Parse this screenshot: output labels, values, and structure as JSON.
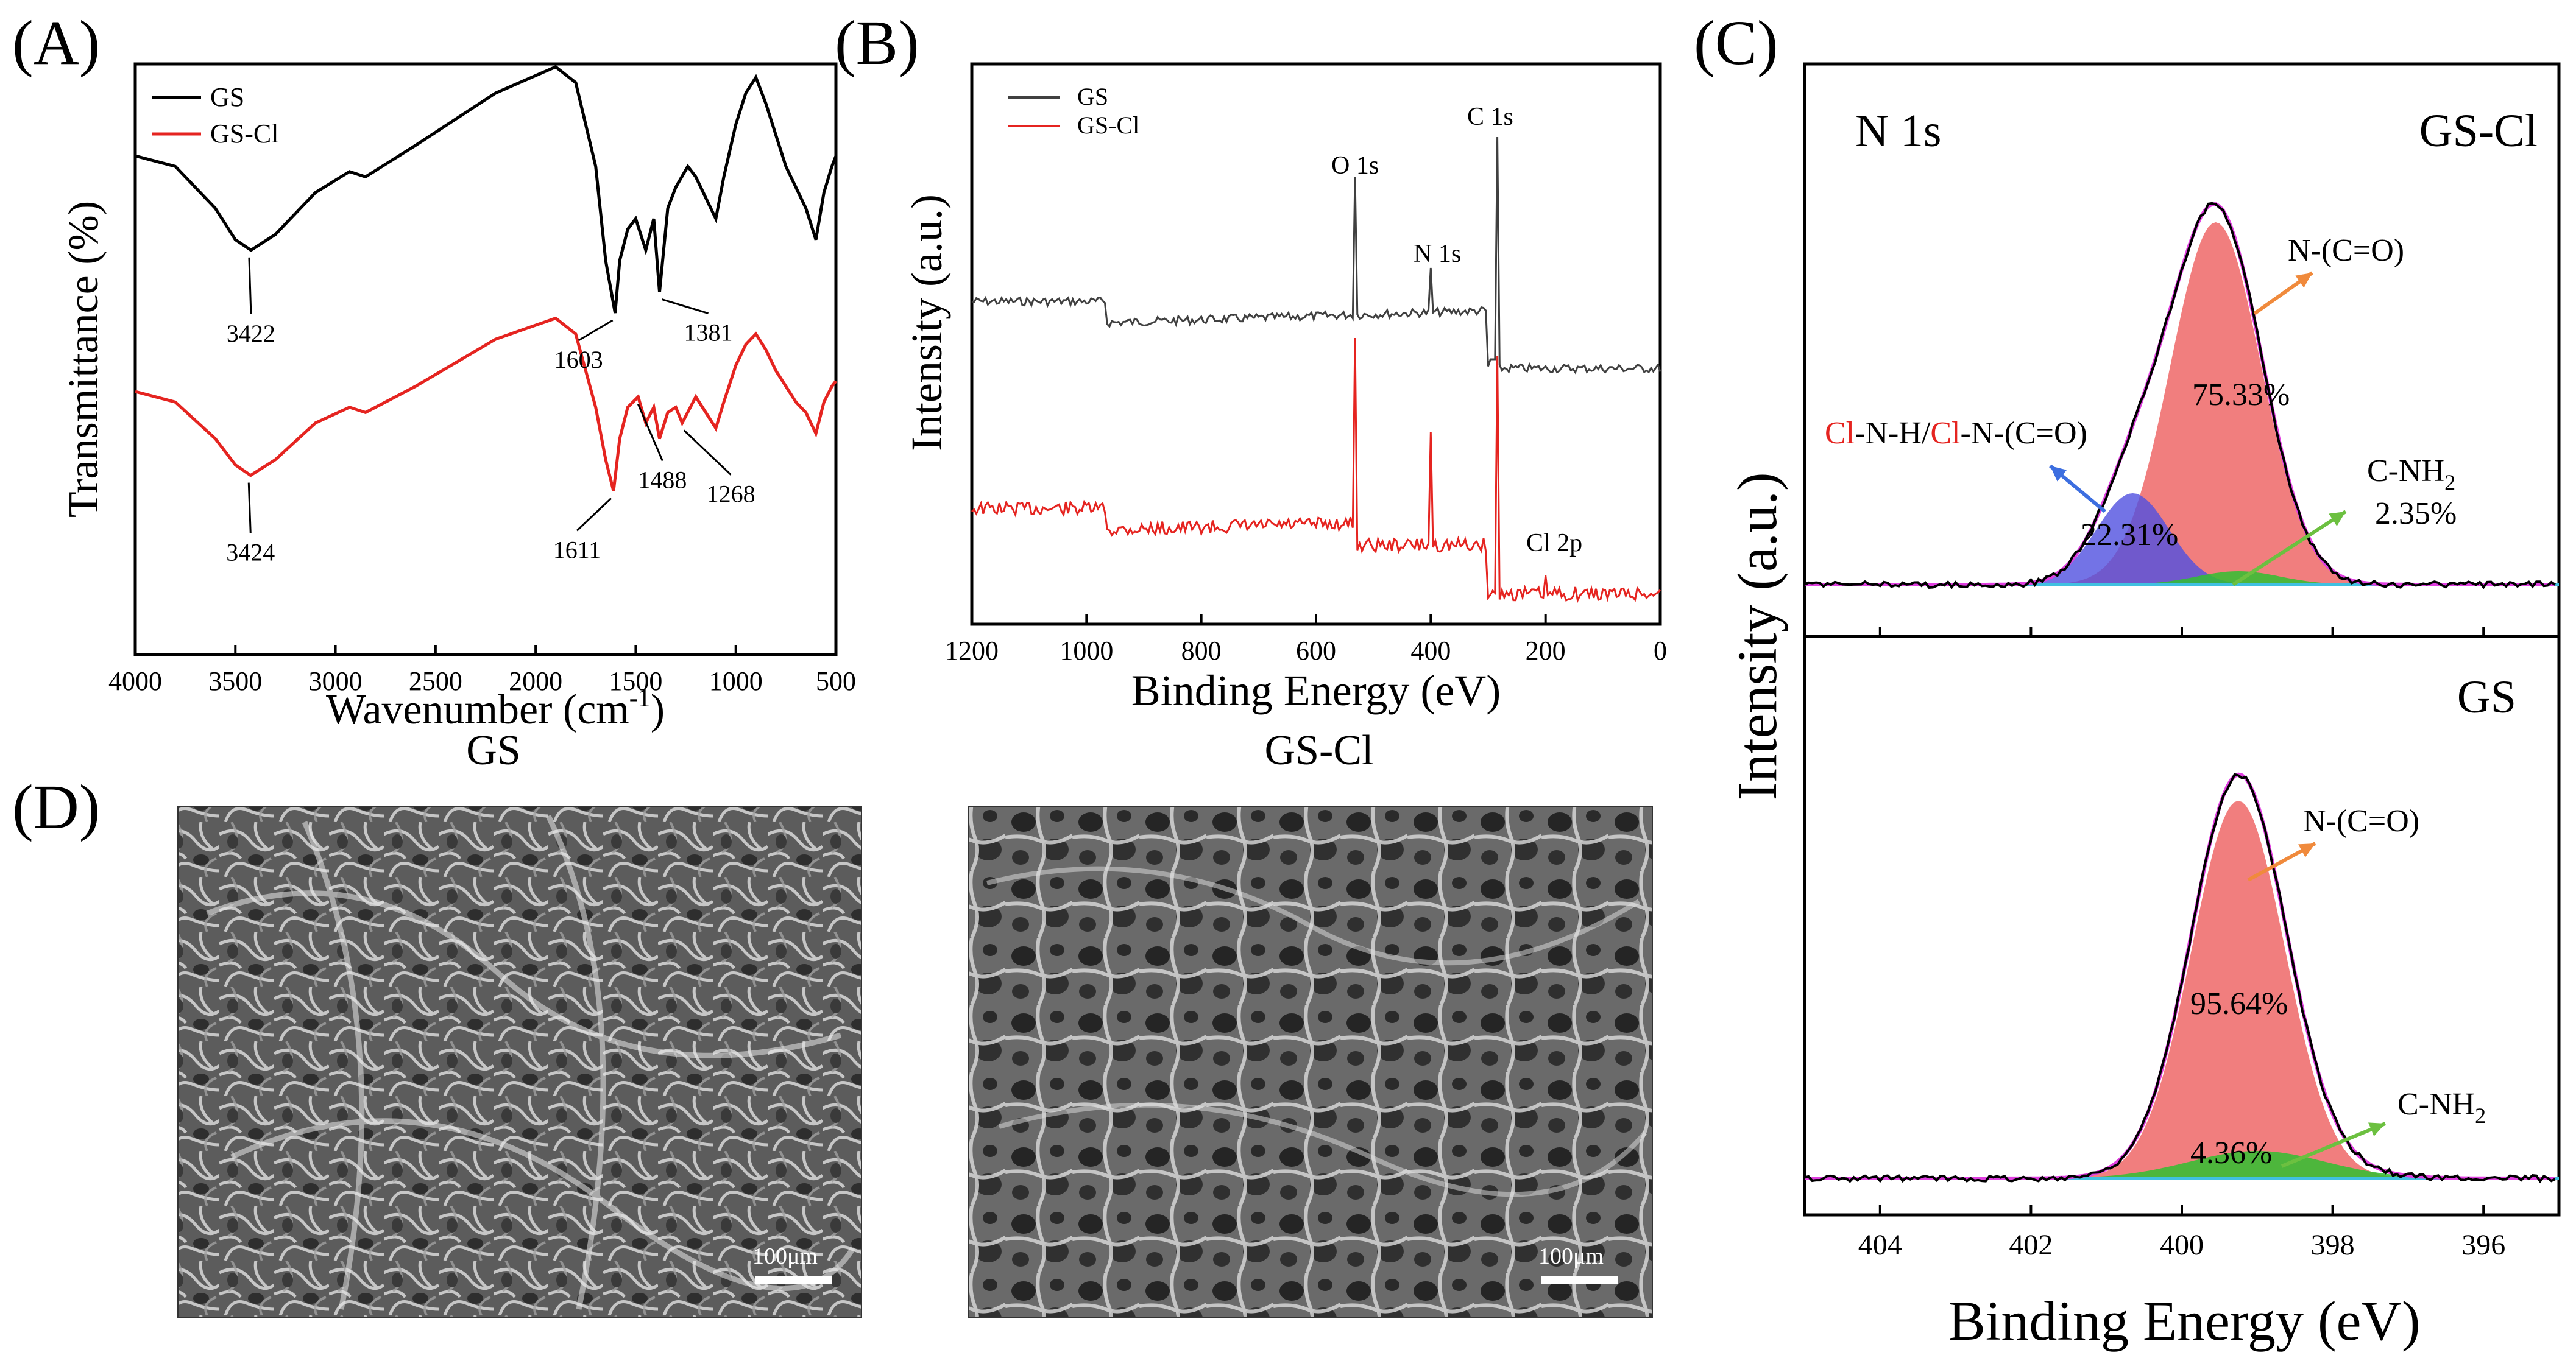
{
  "panels": {
    "A": {
      "label": "(A)"
    },
    "B": {
      "label": "(B)"
    },
    "C": {
      "label": "(C)"
    },
    "D": {
      "label": "(D)"
    }
  },
  "colors": {
    "gs": "#000000",
    "gscl": "#e52420",
    "main_fill": "#f07070",
    "cl_fill": "#5050e0",
    "nh2_fill": "#30c030",
    "envelope": "#e040e0",
    "baseline": "#40c0e0",
    "arrow_orange": "#f08a3c",
    "arrow_blue": "#3c6ee0",
    "arrow_green": "#6cc040",
    "cl_text": "#e52420"
  },
  "chart_data": [
    {
      "id": "A",
      "type": "line",
      "title": "",
      "xlabel_main": "Wavenumber (cm",
      "xlabel_sup": "-1",
      "xlabel_end": ")",
      "ylabel": "Transmittance (%)",
      "xlim": [
        4000,
        500
      ],
      "xticks": [
        "4000",
        "3500",
        "3000",
        "2500",
        "2000",
        "1500",
        "1000",
        "500"
      ],
      "legend": [
        "GS",
        "GS-Cl"
      ],
      "series": [
        {
          "name": "GS",
          "x": [
            4000,
            3800,
            3600,
            3500,
            3422,
            3300,
            3100,
            2930,
            2850,
            2600,
            2200,
            1900,
            1800,
            1700,
            1650,
            1603,
            1580,
            1540,
            1500,
            1450,
            1410,
            1381,
            1340,
            1300,
            1240,
            1200,
            1150,
            1100,
            1060,
            1000,
            950,
            900,
            850,
            800,
            750,
            700,
            650,
            600,
            560,
            520,
            500
          ],
          "y": [
            40,
            38,
            30,
            24,
            22,
            25,
            33,
            37,
            36,
            42,
            52,
            57,
            54,
            38,
            20,
            10,
            20,
            26,
            28,
            22,
            28,
            14,
            30,
            34,
            38,
            36,
            32,
            28,
            36,
            46,
            52,
            55,
            50,
            44,
            38,
            34,
            30,
            24,
            33,
            38,
            40
          ]
        },
        {
          "name": "GS-Cl",
          "x": [
            4000,
            3800,
            3600,
            3500,
            3424,
            3300,
            3100,
            2930,
            2850,
            2600,
            2200,
            1900,
            1800,
            1700,
            1650,
            1611,
            1580,
            1540,
            1488,
            1450,
            1410,
            1381,
            1340,
            1300,
            1268,
            1200,
            1150,
            1100,
            1060,
            1000,
            950,
            900,
            850,
            800,
            750,
            700,
            650,
            600,
            560,
            520,
            500
          ],
          "y": [
            -5,
            -7,
            -14,
            -19,
            -21,
            -18,
            -11,
            -8,
            -9,
            -4,
            5,
            9,
            6,
            -8,
            -18,
            -24,
            -14,
            -8,
            -6,
            -11,
            -8,
            -14,
            -9,
            -8,
            -11,
            -6,
            -9,
            -12,
            -7,
            0,
            4,
            6,
            3,
            -1,
            -4,
            -7,
            -9,
            -13,
            -7,
            -4,
            -3
          ]
        }
      ],
      "annotations": [
        {
          "text": "3422",
          "series": "GS",
          "x": 3422
        },
        {
          "text": "1603",
          "series": "GS",
          "x": 1603
        },
        {
          "text": "1381",
          "series": "GS",
          "x": 1381
        },
        {
          "text": "3424",
          "series": "GS-Cl",
          "x": 3424
        },
        {
          "text": "1611",
          "series": "GS-Cl",
          "x": 1611
        },
        {
          "text": "1488",
          "series": "GS-Cl",
          "x": 1488
        },
        {
          "text": "1268",
          "series": "GS-Cl",
          "x": 1268
        }
      ]
    },
    {
      "id": "B",
      "type": "line",
      "xlabel": "Binding Energy (eV)",
      "ylabel": "Intensity (a.u.)",
      "xlim": [
        1200,
        0
      ],
      "xticks": [
        "1200",
        "1000",
        "800",
        "600",
        "400",
        "200",
        "0"
      ],
      "legend": [
        "GS",
        "GS-Cl"
      ],
      "series": [
        {
          "name": "GS",
          "peaks": {
            "C 1s": 285,
            "O 1s": 532,
            "N 1s": 400
          }
        },
        {
          "name": "GS-Cl",
          "peaks": {
            "C 1s": 285,
            "O 1s": 532,
            "N 1s": 400,
            "Cl 2p": 200
          }
        }
      ],
      "peak_labels": [
        "O 1s",
        "N 1s",
        "C 1s",
        "Cl 2p"
      ]
    },
    {
      "id": "C",
      "type": "area",
      "xlabel": "Binding Energy (eV)",
      "ylabel": "Intensity (a.u.)",
      "xlim": [
        405,
        395
      ],
      "xticks": [
        "404",
        "402",
        "400",
        "398",
        "396"
      ],
      "title": "N 1s",
      "subpanels": [
        {
          "name": "GS-Cl",
          "components": [
            {
              "label": "N-(C=O)",
              "center": 399.5,
              "percent": "75.33%"
            },
            {
              "label_a": "Cl",
              "label_b": "-N-H/",
              "label_c": "Cl",
              "label_d": "-N-(C=O)",
              "center": 400.6,
              "percent": "22.31%"
            },
            {
              "label": "C-NH",
              "sub": "2",
              "center": 399.3,
              "percent": "2.35%"
            }
          ]
        },
        {
          "name": "GS",
          "components": [
            {
              "label": "N-(C=O)",
              "center": 399.3,
              "percent": "95.64%"
            },
            {
              "label": "C-NH",
              "sub": "2",
              "center": 399.0,
              "percent": "4.36%"
            }
          ]
        }
      ]
    }
  ],
  "sem": [
    {
      "title": "GS",
      "scale": "100μm"
    },
    {
      "title": "GS-Cl",
      "scale": "100μm"
    }
  ]
}
